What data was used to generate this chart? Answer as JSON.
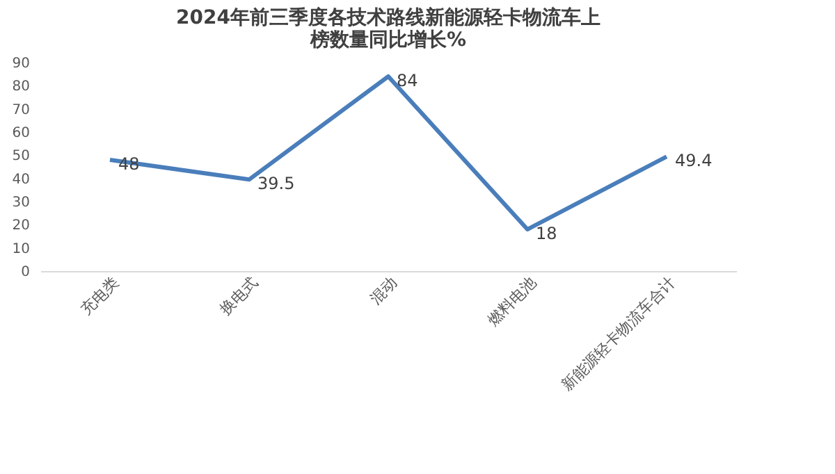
{
  "chart_data": {
    "type": "line",
    "title": "2024年前三季度各技术路线新能源轻卡物流车上榜数量同比增长%",
    "categories": [
      "充电类",
      "换电式",
      "混动",
      "燃料电池",
      "新能源轻卡物流车合计"
    ],
    "series": [
      {
        "color": "#4a7ebb",
        "values": [
          48,
          39.5,
          84,
          18,
          49.4
        ]
      }
    ],
    "ylim": [
      0,
      90
    ],
    "yticks": [
      0,
      10,
      20,
      30,
      40,
      50,
      60,
      70,
      80,
      90
    ],
    "data_labels": true,
    "grid": false,
    "marker": "none",
    "line_style": "solid"
  }
}
